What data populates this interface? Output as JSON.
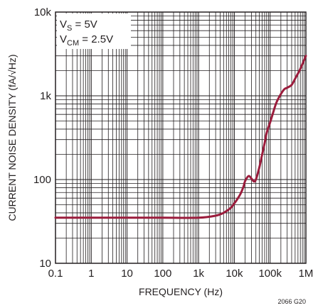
{
  "chart_data": {
    "type": "line",
    "xlabel": "FREQUENCY (Hz)",
    "ylabel": "CURRENT NOISE DENSITY (fA/√Hz)",
    "xscale": "log",
    "yscale": "log",
    "xlim": [
      0.1,
      1000000
    ],
    "ylim": [
      10,
      10000
    ],
    "grid": true,
    "x_tick_labels": [
      "0.1",
      "1",
      "10",
      "100",
      "1k",
      "10k",
      "100k",
      "1M"
    ],
    "y_tick_labels": [
      "10",
      "100",
      "1k",
      "10k"
    ],
    "annotation_lines": [
      {
        "main": "V",
        "sub": "S",
        "rest": " = 5V"
      },
      {
        "main": "V",
        "sub": "CM",
        "rest": " = 2.5V"
      }
    ],
    "figure_id": "2066 G20",
    "line_color": "#9b1c3c",
    "series": [
      {
        "x": [
          0.1,
          1,
          10,
          100,
          1000,
          3000,
          5000,
          8000,
          10000,
          12000,
          15000,
          18000,
          20000,
          25000,
          30000,
          35000,
          40000,
          50000,
          60000,
          70000,
          80000,
          100000,
          120000,
          150000,
          200000,
          250000,
          300000,
          400000,
          500000,
          700000,
          1000000
        ],
        "y": [
          35,
          35,
          35,
          35,
          35,
          37,
          40,
          46,
          52,
          58,
          68,
          82,
          96,
          110,
          103,
          95,
          100,
          140,
          200,
          270,
          360,
          480,
          620,
          830,
          1050,
          1200,
          1250,
          1350,
          1600,
          2100,
          3000
        ]
      }
    ]
  }
}
